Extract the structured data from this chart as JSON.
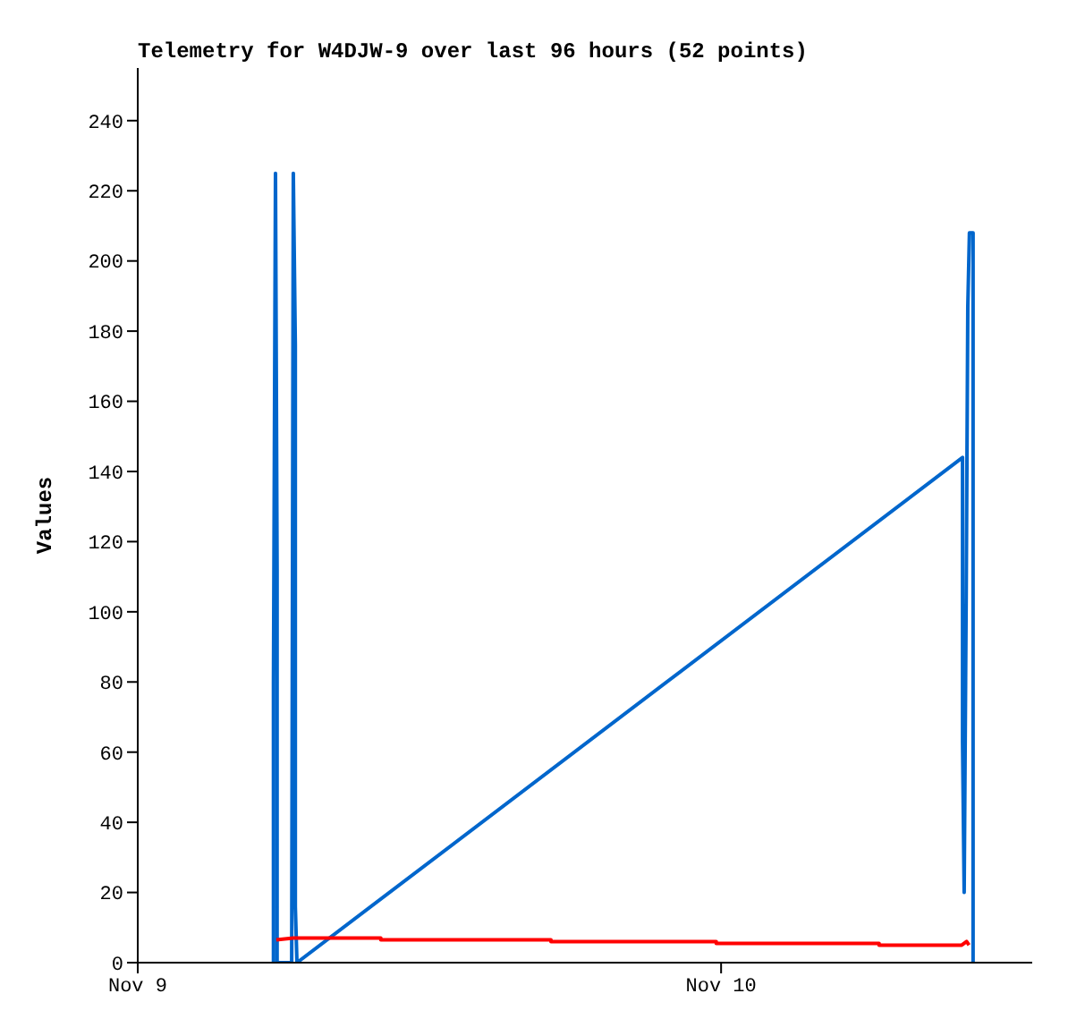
{
  "chart_data": {
    "type": "line",
    "title": "Telemetry for W4DJW-9 over last 96 hours (52 points)",
    "ylabel": "Values",
    "xlim": [
      "--11-09T00:00",
      "--11-10T12:48"
    ],
    "xticks": [
      {
        "value": "--11-09",
        "label": "Nov 9"
      },
      {
        "value": "--11-10",
        "label": "Nov 10"
      }
    ],
    "ylim": [
      0,
      255
    ],
    "yticks": [
      0,
      20,
      40,
      60,
      80,
      100,
      120,
      140,
      160,
      180,
      200,
      220,
      240
    ],
    "marker": "none",
    "line_style": "solid",
    "series": [
      {
        "color": "#0066cc",
        "x": [
          "--11-09T05:35",
          "--11-09T05:35",
          "--11-09T05:40",
          "--11-09T05:44",
          "--11-09T05:44",
          "--11-09T06:20",
          "--11-09T06:24",
          "--11-09T06:29",
          "--11-09T06:29",
          "--11-09T06:33",
          "--11-10T09:56",
          "--11-10T09:56",
          "--11-10T10:00",
          "--11-10T10:05",
          "--11-10T10:09",
          "--11-10T10:13",
          "--11-10T10:22",
          "--11-10T10:22"
        ],
        "values": [
          0,
          80,
          225,
          112,
          0,
          0,
          225,
          176,
          16,
          0,
          144,
          63,
          20,
          104,
          187,
          208,
          208,
          0
        ]
      },
      {
        "color": "#ff0000",
        "x": [
          "--11-09T05:42",
          "--11-09T06:24",
          "--11-09T10:00",
          "--11-09T10:00",
          "--11-09T17:00",
          "--11-09T17:00",
          "--11-09T23:48",
          "--11-09T23:48",
          "--11-10T06:30",
          "--11-10T06:30",
          "--11-10T09:54",
          "--11-10T10:06",
          "--11-10T10:12"
        ],
        "values": [
          6.5,
          7,
          7,
          6.5,
          6.5,
          6,
          6,
          5.5,
          5.5,
          5,
          5,
          6,
          5
        ]
      }
    ]
  }
}
